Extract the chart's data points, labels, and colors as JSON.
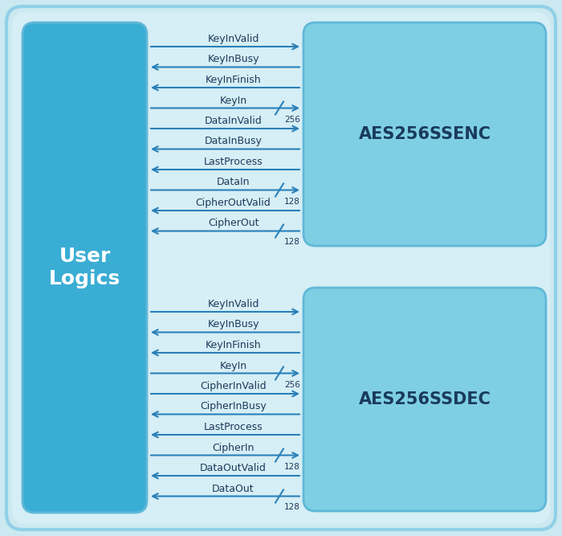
{
  "outer_bg": "#cce8f0",
  "inner_bg": "#d6eef5",
  "left_box_color": "#3aadd4",
  "right_box_color": "#7ecfe3",
  "arrow_color": "#2980b9",
  "text_color": "#1a3a5c",
  "label_dark": "#1c3a5c",
  "enc_label": "AES256SSENC",
  "dec_label": "AES256SSDEC",
  "left_label": "User\nLogics",
  "enc_signals": [
    {
      "name": "KeyInValid",
      "dir": "right",
      "bus": null,
      "row": 0
    },
    {
      "name": "KeyInBusy",
      "dir": "left",
      "bus": null,
      "row": 1
    },
    {
      "name": "KeyInFinish",
      "dir": "left",
      "bus": null,
      "row": 2
    },
    {
      "name": "KeyIn",
      "dir": "right",
      "bus": "256",
      "row": 3
    },
    {
      "name": "DataInValid",
      "dir": "right",
      "bus": null,
      "row": 4
    },
    {
      "name": "DataInBusy",
      "dir": "left",
      "bus": null,
      "row": 5
    },
    {
      "name": "LastProcess",
      "dir": "left",
      "bus": null,
      "row": 6
    },
    {
      "name": "DataIn",
      "dir": "right",
      "bus": "128",
      "row": 7
    },
    {
      "name": "CipherOutValid",
      "dir": "left",
      "bus": null,
      "row": 8
    },
    {
      "name": "CipherOut",
      "dir": "left",
      "bus": "128",
      "row": 9
    }
  ],
  "dec_signals": [
    {
      "name": "KeyInValid",
      "dir": "right",
      "bus": null,
      "row": 0
    },
    {
      "name": "KeyInBusy",
      "dir": "left",
      "bus": null,
      "row": 1
    },
    {
      "name": "KeyInFinish",
      "dir": "left",
      "bus": null,
      "row": 2
    },
    {
      "name": "KeyIn",
      "dir": "right",
      "bus": "256",
      "row": 3
    },
    {
      "name": "CipherInValid",
      "dir": "right",
      "bus": null,
      "row": 4
    },
    {
      "name": "CipherInBusy",
      "dir": "left",
      "bus": null,
      "row": 5
    },
    {
      "name": "LastProcess",
      "dir": "left",
      "bus": null,
      "row": 6
    },
    {
      "name": "CipherIn",
      "dir": "right",
      "bus": "128",
      "row": 7
    },
    {
      "name": "DataOutValid",
      "dir": "left",
      "bus": null,
      "row": 8
    },
    {
      "name": "DataOut",
      "dir": "left",
      "bus": "128",
      "row": 9
    }
  ]
}
